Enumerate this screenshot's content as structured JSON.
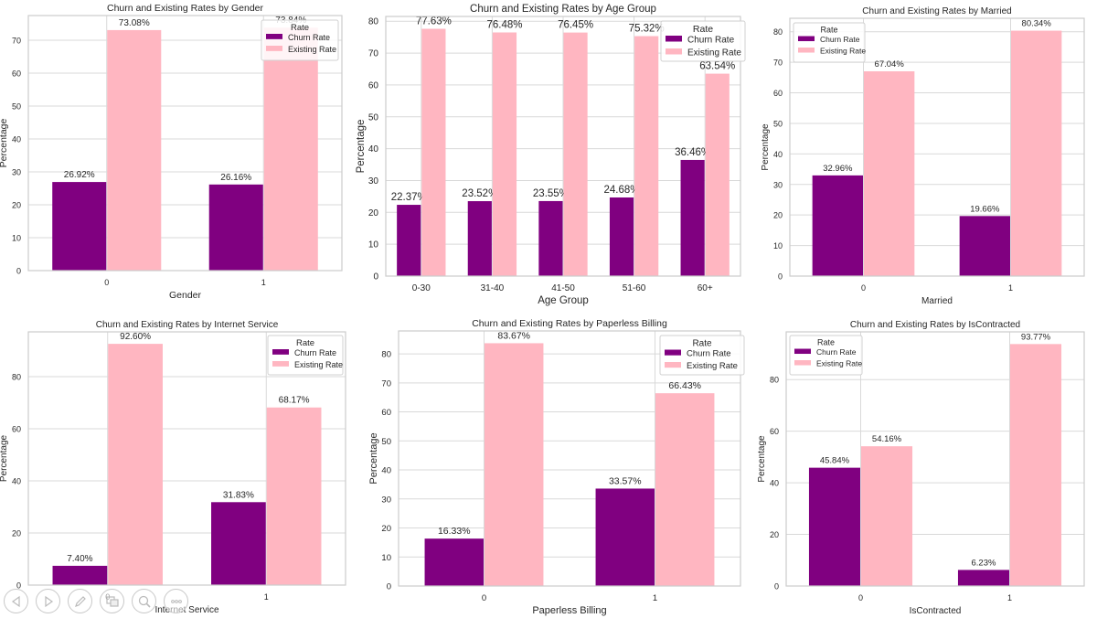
{
  "colors": {
    "churn": "#800080",
    "existing": "#ffb6c1",
    "grid": "#d9d9d9",
    "spine": "#cccccc"
  },
  "legend_title": "Rate",
  "series_names": [
    "Churn Rate",
    "Existing Rate"
  ],
  "toolbar": {
    "buttons": [
      {
        "name": "previous-slide-button",
        "icon": "left-triangle-icon"
      },
      {
        "name": "next-slide-button",
        "icon": "right-triangle-icon"
      },
      {
        "name": "pen-tool-button",
        "icon": "pen-icon"
      },
      {
        "name": "slides-overview-button",
        "icon": "slides-icon"
      },
      {
        "name": "zoom-button",
        "icon": "magnifier-icon"
      },
      {
        "name": "more-options-button",
        "icon": "ellipsis-icon"
      }
    ]
  },
  "chart_data": [
    {
      "type": "bar",
      "title": "Churn and Existing Rates by Gender",
      "xlabel": "Gender",
      "ylabel": "Percentage",
      "categories": [
        "0",
        "1"
      ],
      "series": [
        {
          "name": "Churn Rate",
          "values": [
            26.92,
            26.16
          ]
        },
        {
          "name": "Existing Rate",
          "values": [
            73.08,
            73.84
          ]
        }
      ],
      "data_labels": [
        [
          "26.92%",
          "26.16%"
        ],
        [
          "73.08%",
          "73.84%"
        ]
      ],
      "ylim": [
        0,
        77.5
      ],
      "yticks": [
        0,
        10,
        20,
        30,
        40,
        50,
        60,
        70
      ],
      "grid": true,
      "legend": "top-right"
    },
    {
      "type": "bar",
      "title": "Churn and Existing Rates by Age Group",
      "xlabel": "Age Group",
      "ylabel": "Percentage",
      "categories": [
        "0-30",
        "31-40",
        "41-50",
        "51-60",
        "60+"
      ],
      "series": [
        {
          "name": "Churn Rate",
          "values": [
            22.37,
            23.52,
            23.55,
            24.68,
            36.46
          ]
        },
        {
          "name": "Existing Rate",
          "values": [
            77.63,
            76.48,
            76.45,
            75.32,
            63.54
          ]
        }
      ],
      "data_labels": [
        [
          "22.37%",
          "23.52%",
          "23.55%",
          "24.68%",
          "36.46%"
        ],
        [
          "77.63%",
          "76.48%",
          "76.45%",
          "75.32%",
          "63.54%"
        ]
      ],
      "ylim": [
        0,
        81.5
      ],
      "yticks": [
        0,
        10,
        20,
        30,
        40,
        50,
        60,
        70,
        80
      ],
      "grid": true,
      "legend": "top-right"
    },
    {
      "type": "bar",
      "title": "Churn and Existing Rates by Married",
      "xlabel": "Married",
      "ylabel": "Percentage",
      "categories": [
        "0",
        "1"
      ],
      "series": [
        {
          "name": "Churn Rate",
          "values": [
            32.96,
            19.66
          ]
        },
        {
          "name": "Existing Rate",
          "values": [
            67.04,
            80.34
          ]
        }
      ],
      "data_labels": [
        [
          "32.96%",
          "19.66%"
        ],
        [
          "67.04%",
          "80.34%"
        ]
      ],
      "ylim": [
        0,
        84.4
      ],
      "yticks": [
        0,
        10,
        20,
        30,
        40,
        50,
        60,
        70,
        80
      ],
      "grid": true,
      "legend": "top-left"
    },
    {
      "type": "bar",
      "title": "Churn and Existing Rates by Internet Service",
      "xlabel": "Internet Service",
      "ylabel": "Percentage",
      "categories": [
        "0",
        "1"
      ],
      "series": [
        {
          "name": "Churn Rate",
          "values": [
            7.4,
            31.83
          ]
        },
        {
          "name": "Existing Rate",
          "values": [
            92.6,
            68.17
          ]
        }
      ],
      "data_labels": [
        [
          "7.40%",
          "31.83%"
        ],
        [
          "92.60%",
          "68.17%"
        ]
      ],
      "ylim": [
        0,
        97.2
      ],
      "yticks": [
        0,
        20,
        40,
        60,
        80
      ],
      "grid": true,
      "legend": "top-right"
    },
    {
      "type": "bar",
      "title": "Churn and Existing Rates by Paperless Billing",
      "xlabel": "Paperless Billing",
      "ylabel": "Percentage",
      "categories": [
        "0",
        "1"
      ],
      "series": [
        {
          "name": "Churn Rate",
          "values": [
            16.33,
            33.57
          ]
        },
        {
          "name": "Existing Rate",
          "values": [
            83.67,
            66.43
          ]
        }
      ],
      "data_labels": [
        [
          "16.33%",
          "33.57%"
        ],
        [
          "83.67%",
          "66.43%"
        ]
      ],
      "ylim": [
        0,
        87.9
      ],
      "yticks": [
        0,
        10,
        20,
        30,
        40,
        50,
        60,
        70,
        80
      ],
      "grid": true,
      "legend": "top-right"
    },
    {
      "type": "bar",
      "title": "Churn and Existing Rates by IsContracted",
      "xlabel": "IsContracted",
      "ylabel": "Percentage",
      "categories": [
        "0",
        "1"
      ],
      "series": [
        {
          "name": "Churn Rate",
          "values": [
            45.84,
            6.23
          ]
        },
        {
          "name": "Existing Rate",
          "values": [
            54.16,
            93.77
          ]
        }
      ],
      "data_labels": [
        [
          "45.84%",
          "6.23%"
        ],
        [
          "54.16%",
          "93.77%"
        ]
      ],
      "ylim": [
        0,
        98.5
      ],
      "yticks": [
        0,
        20,
        40,
        60,
        80
      ],
      "grid": true,
      "legend": "top-left"
    }
  ]
}
